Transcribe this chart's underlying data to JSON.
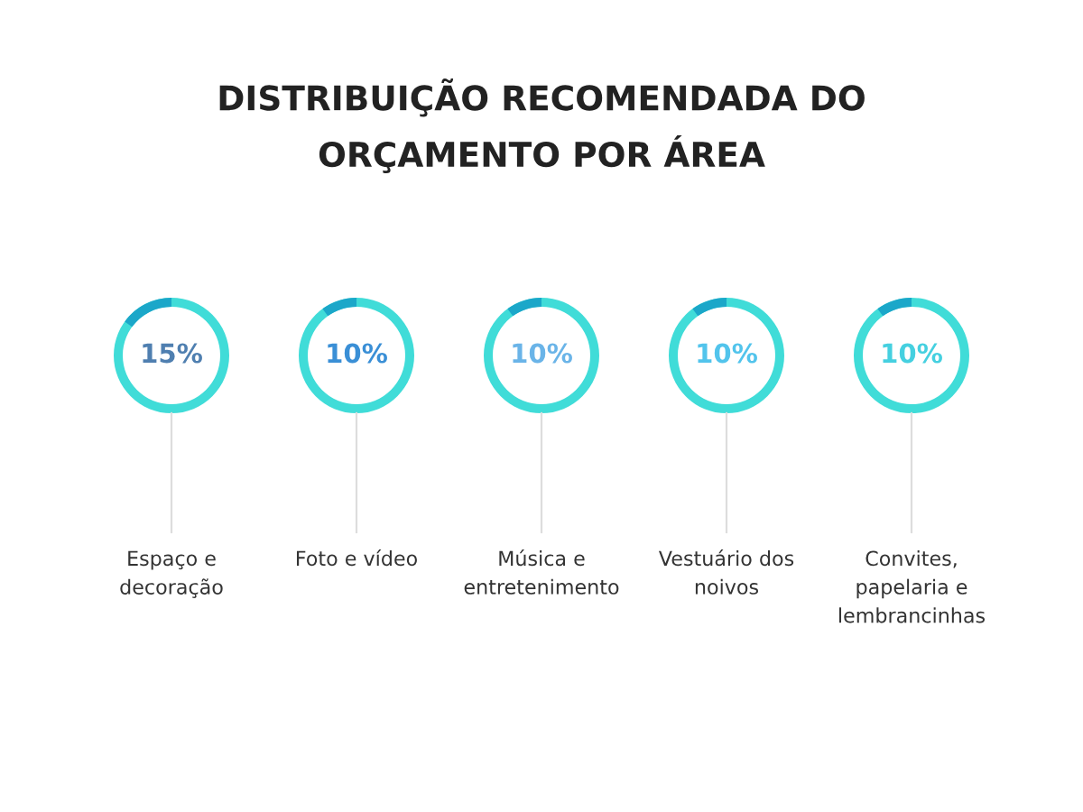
{
  "chart_data": {
    "type": "other",
    "title": "DISTRIBUIÇÃO RECOMENDADA DO\nORÇAMENTO POR ÁREA",
    "categories": [
      "Espaço e\ndecoração",
      "Foto e vídeo",
      "Música e\nentretenimento",
      "Vestuário dos\nnoivos",
      "Convites,\npapelaria e\nlembrancinhas"
    ],
    "values": [
      15,
      10,
      10,
      10,
      10
    ],
    "value_labels": [
      "15%",
      "10%",
      "10%",
      "10%",
      "10%"
    ],
    "colors": [
      "#1ba7c9",
      "#1ba7c9",
      "#1ba7c9",
      "#1ba7c9",
      "#1ba7c9"
    ]
  }
}
